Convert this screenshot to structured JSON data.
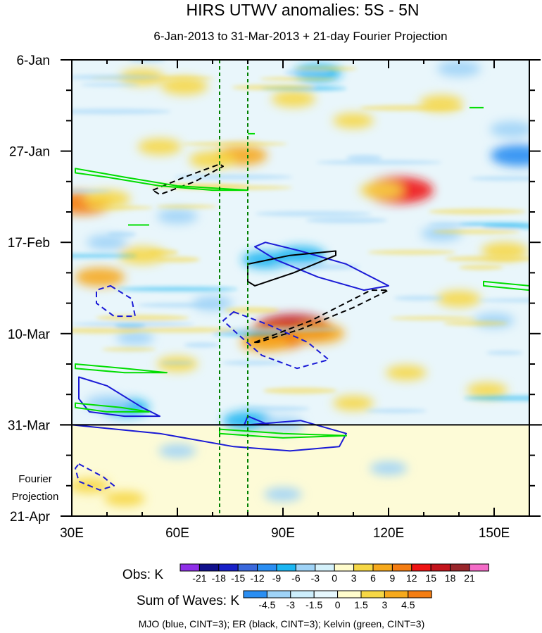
{
  "chart_data": {
    "type": "heatmap",
    "title": "HIRS UTWV anomalies: 5S - 5N",
    "subtitle": "6-Jan-2013 to 31-Mar-2013 + 21-day Fourier Projection",
    "xlim": [
      30,
      160
    ],
    "ylim_days": [
      0,
      105
    ],
    "x_ticks": [
      {
        "value": 30,
        "label": "30E"
      },
      {
        "value": 60,
        "label": "60E"
      },
      {
        "value": 90,
        "label": "90E"
      },
      {
        "value": 120,
        "label": "120E"
      },
      {
        "value": 150,
        "label": "150E"
      }
    ],
    "y_ticks": [
      {
        "day": 0,
        "label": "6-Jan"
      },
      {
        "day": 21,
        "label": "27-Jan"
      },
      {
        "day": 42,
        "label": "17-Feb"
      },
      {
        "day": 63,
        "label": "10-Mar"
      },
      {
        "day": 84,
        "label": "31-Mar"
      },
      {
        "day": 105,
        "label": "21-Apr"
      }
    ],
    "projection_label_line1": "Fourier",
    "projection_label_line2": "Projection",
    "observation_end_day": 84,
    "reference_longitudes": [
      72,
      80
    ],
    "anomaly_blobs": [
      {
        "lon": 93,
        "day": 62,
        "value": 16
      },
      {
        "lon": 88,
        "day": 64,
        "value": 11
      },
      {
        "lon": 85,
        "day": 65,
        "value": 7
      },
      {
        "lon": 100,
        "day": 63,
        "value": 8
      },
      {
        "lon": 78,
        "day": 22,
        "value": 8
      },
      {
        "lon": 70,
        "day": 23,
        "value": 6
      },
      {
        "lon": 55,
        "day": 20,
        "value": 5
      },
      {
        "lon": 123,
        "day": 30,
        "value": 13
      },
      {
        "lon": 118,
        "day": 30,
        "value": 5
      },
      {
        "lon": 33,
        "day": 33,
        "value": 10
      },
      {
        "lon": 40,
        "day": 32,
        "value": 6
      },
      {
        "lon": 38,
        "day": 50,
        "value": 7
      },
      {
        "lon": 50,
        "day": 45,
        "value": 6
      },
      {
        "lon": 62,
        "day": 6,
        "value": 6
      },
      {
        "lon": 50,
        "day": 4,
        "value": 5
      },
      {
        "lon": 93,
        "day": 9,
        "value": 5
      },
      {
        "lon": 135,
        "day": 10,
        "value": 5
      },
      {
        "lon": 110,
        "day": 14,
        "value": 4
      },
      {
        "lon": 140,
        "day": 55,
        "value": 5
      },
      {
        "lon": 153,
        "day": 44,
        "value": 6
      },
      {
        "lon": 60,
        "day": 70,
        "value": 4
      },
      {
        "lon": 125,
        "day": 72,
        "value": 4
      },
      {
        "lon": 148,
        "day": 76,
        "value": 4
      },
      {
        "lon": 35,
        "day": 98,
        "value": 4
      },
      {
        "lon": 45,
        "day": 101,
        "value": 4
      },
      {
        "lon": 110,
        "day": 79,
        "value": 4
      },
      {
        "lon": 157,
        "day": 22,
        "value": -9
      },
      {
        "lon": 155,
        "day": 16,
        "value": -5
      },
      {
        "lon": 85,
        "day": 46,
        "value": -6
      },
      {
        "lon": 95,
        "day": 45,
        "value": -7
      },
      {
        "lon": 100,
        "day": 3,
        "value": -6
      },
      {
        "lon": 140,
        "day": 2,
        "value": -5
      },
      {
        "lon": 45,
        "day": 80,
        "value": -7
      },
      {
        "lon": 40,
        "day": 79,
        "value": -5
      },
      {
        "lon": 80,
        "day": 83,
        "value": -7
      },
      {
        "lon": 90,
        "day": 84,
        "value": -5
      },
      {
        "lon": 60,
        "day": 36,
        "value": -4
      },
      {
        "lon": 135,
        "day": 40,
        "value": -4
      },
      {
        "lon": 40,
        "day": 42,
        "value": -4
      },
      {
        "lon": 70,
        "day": 56,
        "value": -4
      },
      {
        "lon": 150,
        "day": 60,
        "value": -4
      },
      {
        "lon": 48,
        "day": 64,
        "value": -3
      },
      {
        "lon": 60,
        "day": 90,
        "value": -3
      },
      {
        "lon": 120,
        "day": 94,
        "value": -3
      },
      {
        "lon": 90,
        "day": 100,
        "value": -3
      }
    ],
    "wave_contours": [
      {
        "wave": "MJO",
        "sign": "positive",
        "points": [
          [
            85,
            42
          ],
          [
            95,
            44
          ],
          [
            108,
            47
          ],
          [
            120,
            52
          ],
          [
            113,
            53
          ],
          [
            100,
            50
          ],
          [
            88,
            46
          ],
          [
            82,
            43
          ]
        ]
      },
      {
        "wave": "MJO",
        "sign": "negative",
        "points": [
          [
            76,
            58
          ],
          [
            86,
            61
          ],
          [
            97,
            65
          ],
          [
            103,
            69
          ],
          [
            94,
            71
          ],
          [
            84,
            68
          ],
          [
            77,
            63
          ],
          [
            73,
            60
          ]
        ]
      },
      {
        "wave": "MJO",
        "sign": "negative",
        "points": [
          [
            41,
            52
          ],
          [
            47,
            55
          ],
          [
            48,
            59
          ],
          [
            42,
            59
          ],
          [
            37,
            56
          ],
          [
            37,
            53
          ]
        ]
      },
      {
        "wave": "MJO",
        "sign": "positive",
        "points": [
          [
            32,
            73
          ],
          [
            40,
            75
          ],
          [
            50,
            80
          ],
          [
            55,
            82
          ],
          [
            45,
            82
          ],
          [
            35,
            81
          ],
          [
            32,
            78
          ],
          [
            32,
            75
          ]
        ]
      },
      {
        "wave": "MJO",
        "sign": "positive",
        "points": [
          [
            30,
            84
          ],
          [
            55,
            86
          ],
          [
            76,
            89
          ],
          [
            92,
            90
          ],
          [
            106,
            89
          ],
          [
            108,
            86
          ],
          [
            95,
            83
          ],
          [
            80,
            84
          ],
          [
            70,
            84
          ],
          [
            30,
            84
          ]
        ]
      },
      {
        "wave": "MJO",
        "sign": "positive",
        "points": [
          [
            80,
            82
          ],
          [
            86,
            84
          ],
          [
            79,
            84
          ]
        ]
      },
      {
        "wave": "MJO",
        "sign": "negative",
        "points": [
          [
            32,
            93
          ],
          [
            39,
            96
          ],
          [
            42,
            98
          ],
          [
            38,
            99
          ],
          [
            32,
            97
          ],
          [
            31,
            94
          ]
        ]
      },
      {
        "wave": "ER",
        "sign": "negative",
        "points": [
          [
            53,
            30
          ],
          [
            62,
            27
          ],
          [
            72,
            24
          ],
          [
            73,
            24.5
          ],
          [
            65,
            28
          ],
          [
            55,
            31
          ]
        ]
      },
      {
        "wave": "ER",
        "sign": "positive",
        "points": [
          [
            80,
            47
          ],
          [
            92,
            45
          ],
          [
            105,
            44
          ],
          [
            105,
            45
          ],
          [
            93,
            49
          ],
          [
            82,
            52
          ],
          [
            80,
            51
          ]
        ]
      },
      {
        "wave": "ER",
        "sign": "negative",
        "points": [
          [
            82,
            65
          ],
          [
            98,
            60
          ],
          [
            115,
            53
          ],
          [
            120,
            53
          ],
          [
            110,
            57
          ],
          [
            95,
            62
          ],
          [
            83,
            65
          ]
        ]
      },
      {
        "wave": "Kelvin",
        "sign": "positive",
        "points": [
          [
            31,
            25
          ],
          [
            45,
            27
          ],
          [
            60,
            29
          ],
          [
            80,
            30
          ],
          [
            70,
            30
          ],
          [
            55,
            29
          ],
          [
            40,
            27
          ],
          [
            31,
            26
          ]
        ]
      },
      {
        "wave": "Kelvin",
        "sign": "positive",
        "points": [
          [
            31,
            70
          ],
          [
            45,
            71
          ],
          [
            57,
            72
          ],
          [
            45,
            72
          ],
          [
            31,
            71
          ]
        ]
      },
      {
        "wave": "Kelvin",
        "sign": "positive",
        "points": [
          [
            31,
            79
          ],
          [
            44,
            80
          ],
          [
            52,
            81
          ],
          [
            40,
            81
          ],
          [
            31,
            80
          ]
        ]
      },
      {
        "wave": "Kelvin",
        "sign": "positive",
        "points": [
          [
            72,
            85
          ],
          [
            90,
            86
          ],
          [
            108,
            86.5
          ],
          [
            90,
            87
          ],
          [
            72,
            86
          ]
        ]
      },
      {
        "wave": "Kelvin",
        "sign": "positive",
        "points": [
          [
            147,
            51
          ],
          [
            160,
            52
          ],
          [
            160,
            53
          ],
          [
            147,
            52
          ]
        ]
      },
      {
        "wave": "Kelvin",
        "sign": "positive",
        "points": [
          [
            46,
            38
          ],
          [
            52,
            38
          ]
        ]
      },
      {
        "wave": "Kelvin",
        "sign": "positive",
        "points": [
          [
            143,
            11
          ],
          [
            147,
            11
          ]
        ]
      },
      {
        "wave": "Kelvin",
        "sign": "positive",
        "points": [
          [
            80,
            17
          ],
          [
            82,
            17
          ]
        ]
      }
    ],
    "obs_legend": {
      "label": "Obs: K",
      "levels": [
        "-21",
        "-18",
        "-15",
        "-12",
        "-9",
        "-6",
        "-3",
        "0",
        "3",
        "6",
        "9",
        "12",
        "15",
        "18",
        "21"
      ],
      "colors": [
        "#8f2fe8",
        "#10108c",
        "#1820c8",
        "#3a68dc",
        "#2a8ef2",
        "#1cb6f2",
        "#9fd3f7",
        "#d4f1fb",
        "#fffccc",
        "#f6d745",
        "#f6a91c",
        "#f47d12",
        "#ef1414",
        "#c4141c",
        "#99262b",
        "#f46cc8"
      ]
    },
    "waves_legend": {
      "label": "Sum of Waves: K",
      "levels": [
        "-4.5",
        "-3",
        "-1.5",
        "0",
        "1.5",
        "3",
        "4.5"
      ],
      "colors": [
        "#2a8ef2",
        "#9fd3f7",
        "#cdeefc",
        "#e6f7fd",
        "#fffccc",
        "#f6d745",
        "#f6a91c",
        "#f47d12"
      ]
    },
    "caption": "MJO (blue, CINT=3); ER (black, CINT=3); Kelvin (green, CINT=3)",
    "wave_colors": {
      "MJO": "#1a1ad6",
      "ER": "#000000",
      "Kelvin": "#00dd00"
    },
    "reference_line_color": "#008000"
  }
}
